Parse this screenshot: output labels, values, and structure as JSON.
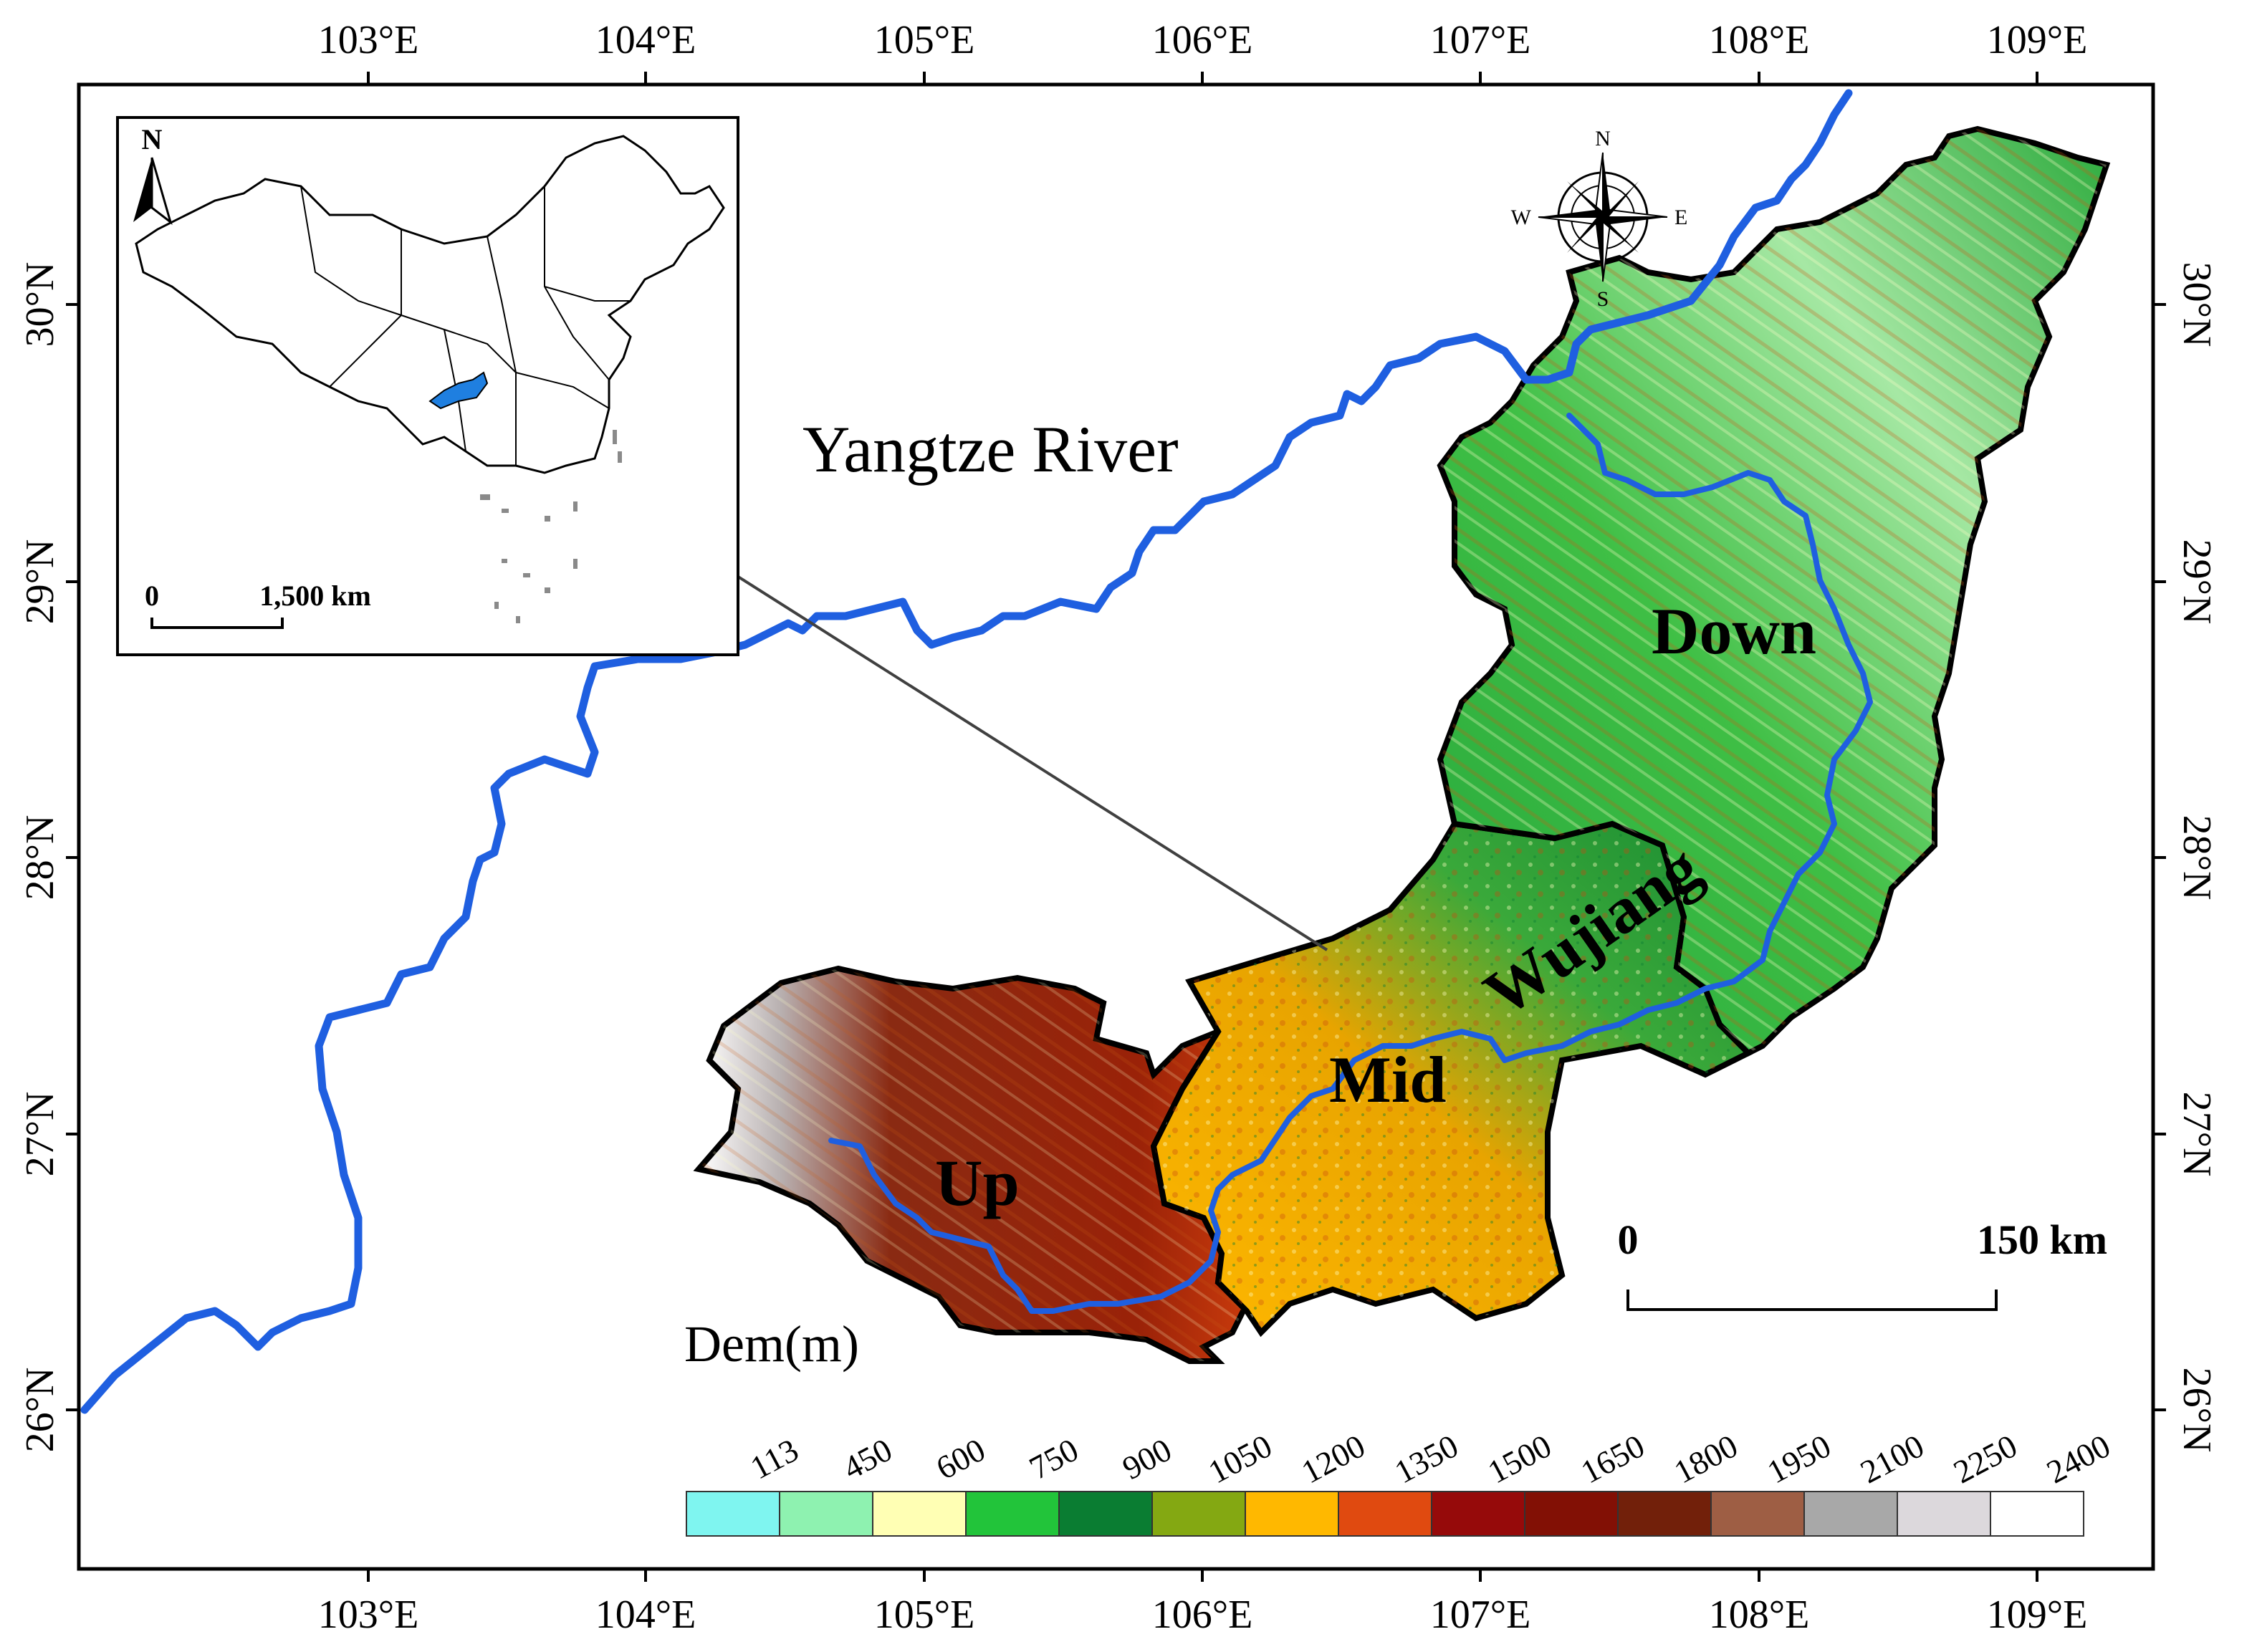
{
  "map": {
    "top_lon_labels": [
      "103°E",
      "104°E",
      "105°E",
      "106°E",
      "107°E",
      "108°E",
      "109°E"
    ],
    "bottom_lon_labels": [
      "103°E",
      "104°E",
      "105°E",
      "106°E",
      "107°E",
      "108°E",
      "109°E"
    ],
    "left_lat_labels": [
      "30°N",
      "29°N",
      "28°N",
      "27°N",
      "26°N"
    ],
    "right_lat_labels": [
      "30°N",
      "29°N",
      "28°N",
      "27°N",
      "26°N"
    ],
    "river_label": "Yangtze River",
    "regions": {
      "up": "Up",
      "mid": "Mid",
      "down": "Down",
      "wujiang": "Wujiang"
    }
  },
  "inset": {
    "north_label": "N",
    "scale_zero": "0",
    "scale_label": "1,500 km"
  },
  "compass": {
    "n": "N",
    "e": "E",
    "s": "S",
    "w": "W"
  },
  "scale_bar": {
    "zero": "0",
    "label": "150 km"
  },
  "legend": {
    "title": "Dem(m)",
    "breaks": [
      "113",
      "450",
      "600",
      "750",
      "900",
      "1050",
      "1200",
      "1350",
      "1500",
      "1650",
      "1800",
      "1950",
      "2100",
      "2250",
      "2400"
    ],
    "colors": [
      "#7ff5f0",
      "#8ef2b0",
      "#ffffb4",
      "#22c43a",
      "#0a7d32",
      "#84a812",
      "#ffb800",
      "#e04a10",
      "#960a0a",
      "#821005",
      "#72200a",
      "#9e5e44",
      "#a8a8a8",
      "#dcd8dc",
      "#ffffff"
    ]
  },
  "colors": {
    "river": "#1f5fe0",
    "boundary": "#000000"
  }
}
